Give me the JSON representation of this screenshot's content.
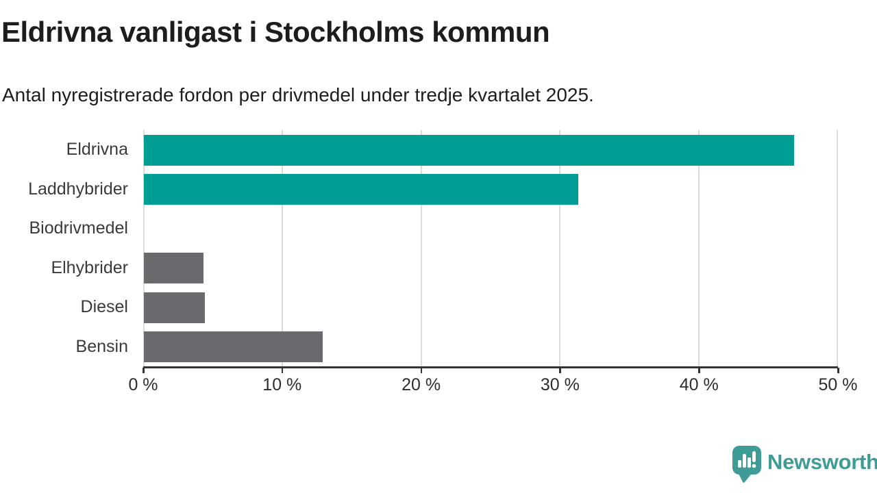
{
  "chart_data": {
    "type": "bar",
    "orientation": "horizontal",
    "title": "Eldrivna vanligast i Stockholms kommun",
    "subtitle": "Antal nyregistrerade fordon per drivmedel under tredje kvartalet 2025.",
    "categories": [
      "Eldrivna",
      "Laddhybrider",
      "Biodrivmedel",
      "Elhybrider",
      "Diesel",
      "Bensin"
    ],
    "values": [
      46.9,
      31.3,
      0,
      4.3,
      4.4,
      12.9
    ],
    "bar_colors": [
      "#009d94",
      "#009d94",
      "#69696e",
      "#69696e",
      "#69696e",
      "#69696e"
    ],
    "xlim": [
      0,
      50
    ],
    "x_ticks": [
      0,
      10,
      20,
      30,
      40,
      50
    ],
    "x_tick_labels": [
      "0 %",
      "10 %",
      "20 %",
      "30 %",
      "40 %",
      "50 %"
    ],
    "grid": "vertical-only",
    "legend": "none"
  },
  "colors": {
    "highlight_teal": "#009d94",
    "neutral_gray": "#69696e",
    "gridline": "#dbdbdb",
    "axis": "#333333",
    "title_text": "#1d1d1d",
    "label_text": "#3a3a3a",
    "logo_teal": "#3e9b96",
    "background": "#ffffff"
  },
  "footer": {
    "brand": "Newsworthy"
  }
}
